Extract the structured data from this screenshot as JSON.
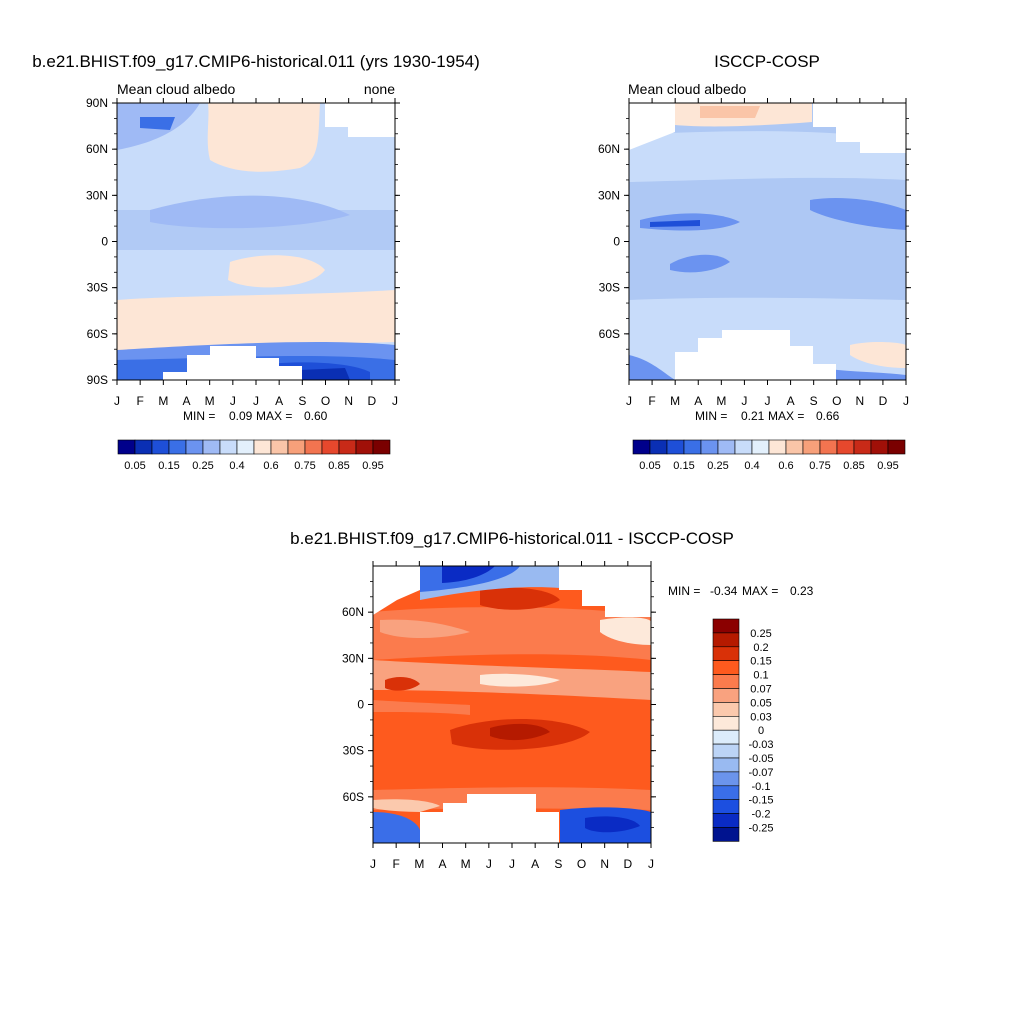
{
  "chart_data": [
    {
      "type": "heatmap",
      "title": "b.e21.BHIST.f09_g17.CMIP6-historical.011 (yrs 1930-1954)",
      "left_label": "Mean cloud albedo",
      "right_label": "none",
      "y_ticks": [
        "90N",
        "60N",
        "30N",
        "0",
        "30S",
        "60S",
        "90S"
      ],
      "x_ticks": [
        "J",
        "F",
        "M",
        "A",
        "M",
        "J",
        "J",
        "A",
        "S",
        "O",
        "N",
        "D",
        "J"
      ],
      "min_label": "MIN =",
      "min_value": "0.09",
      "max_label": "MAX =",
      "max_value": "0.60",
      "colorbar_labels": [
        "0.05",
        "0.15",
        "0.25",
        "0.4",
        "0.6",
        "0.75",
        "0.85",
        "0.95"
      ]
    },
    {
      "type": "heatmap",
      "title": "ISCCP-COSP",
      "left_label": "Mean cloud albedo",
      "y_ticks": [
        "60N",
        "30N",
        "0",
        "30S",
        "60S"
      ],
      "x_ticks": [
        "J",
        "F",
        "M",
        "A",
        "M",
        "J",
        "J",
        "A",
        "S",
        "O",
        "N",
        "D",
        "J"
      ],
      "min_label": "MIN =",
      "min_value": "0.21",
      "max_label": "MAX =",
      "max_value": "0.66",
      "colorbar_labels": [
        "0.05",
        "0.15",
        "0.25",
        "0.4",
        "0.6",
        "0.75",
        "0.85",
        "0.95"
      ]
    },
    {
      "type": "heatmap",
      "title": "b.e21.BHIST.f09_g17.CMIP6-historical.011 - ISCCP-COSP",
      "y_ticks": [
        "60N",
        "30N",
        "0",
        "30S",
        "60S"
      ],
      "x_ticks": [
        "J",
        "F",
        "M",
        "A",
        "M",
        "J",
        "J",
        "A",
        "S",
        "O",
        "N",
        "D",
        "J"
      ],
      "min_label": "MIN =",
      "min_value": "-0.34",
      "max_label": "MAX =",
      "max_value": "0.23",
      "colorbar_labels": [
        "0.25",
        "0.2",
        "0.15",
        "0.1",
        "0.07",
        "0.05",
        "0.03",
        "0",
        "-0.03",
        "-0.05",
        "-0.07",
        "-0.1",
        "-0.15",
        "-0.2",
        "-0.25"
      ]
    }
  ],
  "colors": {
    "albedo_scale": [
      "#00008b",
      "#0a2fb4",
      "#1e4fd8",
      "#3a6fe6",
      "#6b93f0",
      "#9fbaf5",
      "#c8dcfa",
      "#e3f0fc",
      "#fde6d6",
      "#fac5a8",
      "#f7a07a",
      "#f27450",
      "#e6482d",
      "#c82a18",
      "#a01008",
      "#7a0000"
    ],
    "diff_scale": [
      "#8b0000",
      "#b51a00",
      "#d93108",
      "#fe5a1e",
      "#fb7b4d",
      "#f9a27f",
      "#fbc9ad",
      "#fde9da",
      "#dcecfb",
      "#bcd4f6",
      "#99baf1",
      "#6b94ec",
      "#3a6ee8",
      "#1c4fe0",
      "#0a2bc4",
      "#00138f"
    ],
    "field_fill": "#aec8f4",
    "diff_fill": "#fe5a1e"
  }
}
